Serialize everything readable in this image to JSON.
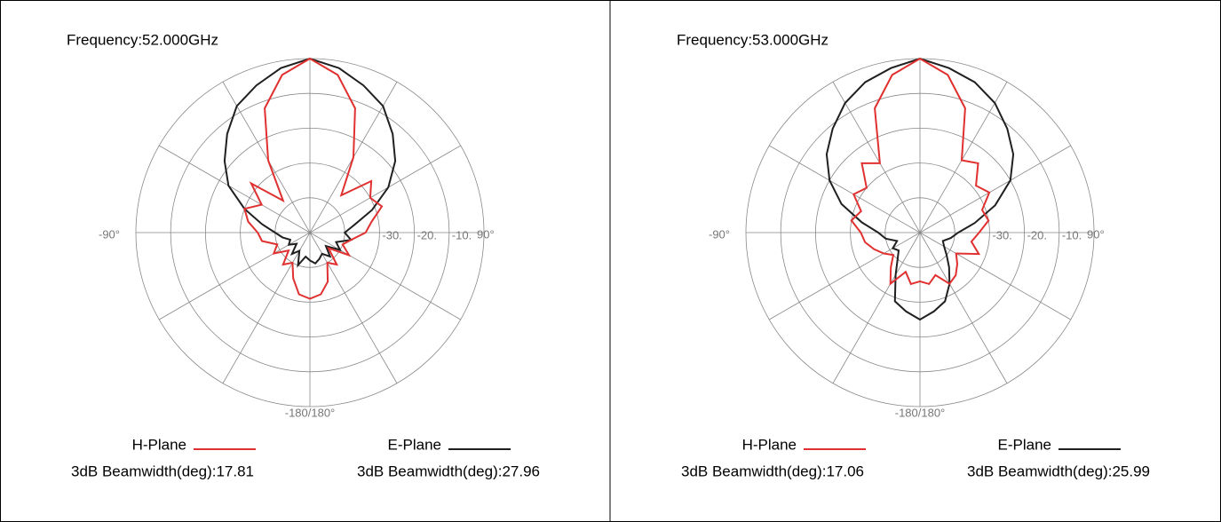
{
  "chart_data": [
    {
      "type": "polar",
      "title": "Frequency:52.000GHz",
      "theta": [
        -180,
        -170,
        -160,
        -150,
        -140,
        -130,
        -120,
        -110,
        -100,
        -90,
        -80,
        -70,
        -60,
        -50,
        -40,
        -30,
        -20,
        -10,
        0,
        10,
        20,
        30,
        40,
        50,
        60,
        70,
        80,
        90,
        100,
        110,
        120,
        130,
        140,
        150,
        160,
        170
      ],
      "rlim": [
        -50,
        0
      ],
      "rings": [
        -40,
        -30,
        -20,
        -10
      ],
      "rtick_labels": [
        {
          "value": -30,
          "label": "-30."
        },
        {
          "value": -20,
          "label": "-20."
        },
        {
          "value": -10,
          "label": "-10."
        }
      ],
      "theta_labels": [
        {
          "value": -90,
          "label": "-90°"
        },
        {
          "value": 90,
          "label": "90°"
        },
        {
          "value": 180,
          "label": "-180/180°"
        }
      ],
      "spoke_step": 30,
      "series": [
        {
          "name": "H-Plane",
          "color": "#e03030",
          "beamwidth_label": "3dB Beamwidth(deg):17.81",
          "values": [
            -31,
            -32,
            -36,
            -40,
            -38,
            -42,
            -38,
            -40,
            -36,
            -35,
            -32,
            -30,
            -34,
            -28,
            -38,
            -26,
            -12,
            -4,
            0,
            -4,
            -12,
            -25,
            -36,
            -27,
            -30,
            -28,
            -32,
            -34,
            -38,
            -40,
            -37,
            -43,
            -38,
            -40,
            -35,
            -32
          ]
        },
        {
          "name": "E-Plane",
          "color": "#202020",
          "beamwidth_label": "3dB Beamwidth(deg):27.96",
          "values": [
            -42,
            -43,
            -40,
            -44,
            -42,
            -45,
            -43,
            -44,
            -42,
            -40,
            -36,
            -30,
            -23,
            -18,
            -13,
            -8,
            -5,
            -2,
            0,
            -2,
            -5,
            -8,
            -13,
            -18,
            -24,
            -31,
            -37,
            -40,
            -38,
            -42,
            -40,
            -44,
            -41,
            -43,
            -42,
            -41
          ]
        }
      ]
    },
    {
      "type": "polar",
      "title": "Frequency:53.000GHz",
      "theta": [
        -180,
        -170,
        -160,
        -150,
        -140,
        -130,
        -120,
        -110,
        -100,
        -90,
        -80,
        -70,
        -60,
        -50,
        -40,
        -30,
        -20,
        -10,
        0,
        10,
        20,
        30,
        40,
        50,
        60,
        70,
        80,
        90,
        100,
        110,
        120,
        130,
        140,
        150,
        160,
        170
      ],
      "rlim": [
        -50,
        0
      ],
      "rings": [
        -40,
        -30,
        -20,
        -10
      ],
      "rtick_labels": [
        {
          "value": -30,
          "label": "-30."
        },
        {
          "value": -20,
          "label": "-20."
        },
        {
          "value": -10,
          "label": "-10."
        }
      ],
      "theta_labels": [
        {
          "value": -90,
          "label": "-90°"
        },
        {
          "value": 90,
          "label": "90°"
        },
        {
          "value": 180,
          "label": "-180/180°"
        }
      ],
      "spoke_step": 30,
      "series": [
        {
          "name": "H-Plane",
          "color": "#e03030",
          "beamwidth_label": "3dB Beamwidth(deg):17.06",
          "values": [
            -36,
            -35,
            -38,
            -33,
            -37,
            -40,
            -38,
            -36,
            -34,
            -33,
            -30,
            -32,
            -28,
            -30,
            -24,
            -27,
            -12,
            -4,
            0,
            -4,
            -12,
            -26,
            -24,
            -29,
            -27,
            -31,
            -30,
            -33,
            -35,
            -32,
            -38,
            -36,
            -34,
            -33,
            -37,
            -35
          ]
        },
        {
          "name": "E-Plane",
          "color": "#202020",
          "beamwidth_label": "3dB Beamwidth(deg):25.99",
          "values": [
            -25,
            -27,
            -29,
            -36,
            -40,
            -42,
            -41,
            -43,
            -40,
            -38,
            -33,
            -26,
            -20,
            -15,
            -11,
            -7,
            -4,
            -2,
            0,
            -2,
            -4,
            -7,
            -11,
            -15,
            -20,
            -27,
            -34,
            -39,
            -41,
            -43,
            -42,
            -40,
            -37,
            -33,
            -29,
            -27
          ]
        }
      ]
    }
  ]
}
